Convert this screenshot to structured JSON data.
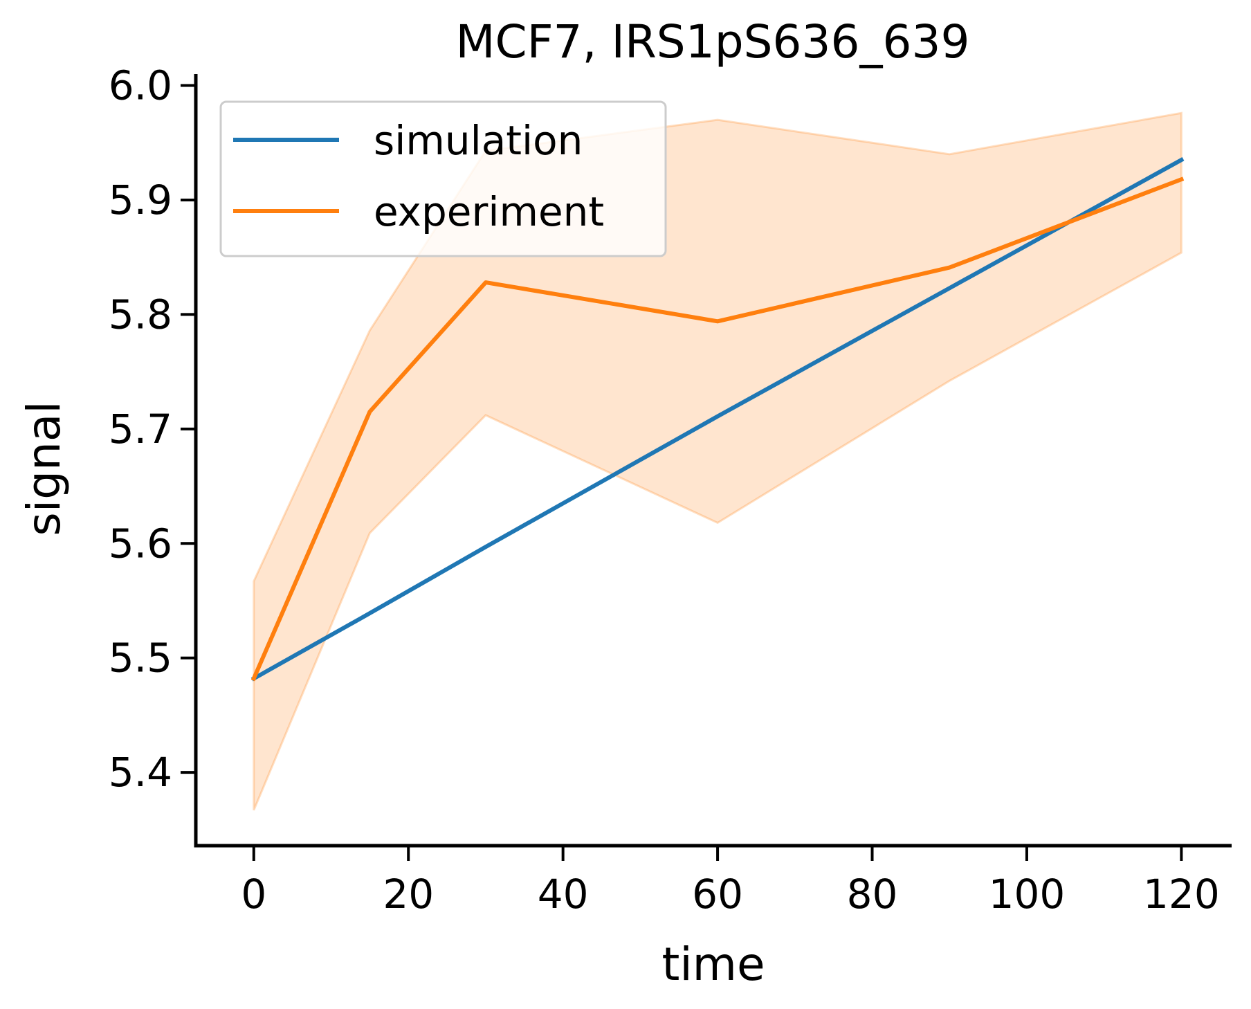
{
  "chart_data": {
    "type": "line",
    "title": "MCF7, IRS1pS636_639",
    "xlabel": "time",
    "ylabel": "signal",
    "xlim": [
      -7.5,
      126.5
    ],
    "ylim": [
      5.336,
      6.01
    ],
    "xticks": [
      0,
      20,
      40,
      60,
      80,
      100,
      120
    ],
    "yticks": [
      5.4,
      5.5,
      5.6,
      5.7,
      5.8,
      5.9,
      6.0
    ],
    "xtick_labels": [
      "0",
      "20",
      "40",
      "60",
      "80",
      "100",
      "120"
    ],
    "ytick_labels": [
      "5.4",
      "5.5",
      "5.6",
      "5.7",
      "5.8",
      "5.9",
      "6.0"
    ],
    "grid": false,
    "legend": "upper-left",
    "series": [
      {
        "name": "simulation",
        "color": "#1f77b4",
        "x": [
          0,
          15,
          30,
          60,
          90,
          120
        ],
        "y": [
          5.482,
          5.539,
          5.597,
          5.711,
          5.823,
          5.935
        ]
      },
      {
        "name": "experiment",
        "color": "#ff7f0e",
        "x": [
          0,
          15,
          30,
          60,
          90,
          120
        ],
        "y": [
          5.482,
          5.715,
          5.828,
          5.794,
          5.841,
          5.918
        ],
        "band_lower": [
          5.367,
          5.609,
          5.712,
          5.618,
          5.742,
          5.854
        ],
        "band_upper": [
          5.567,
          5.786,
          5.943,
          5.97,
          5.94,
          5.976
        ]
      }
    ]
  }
}
